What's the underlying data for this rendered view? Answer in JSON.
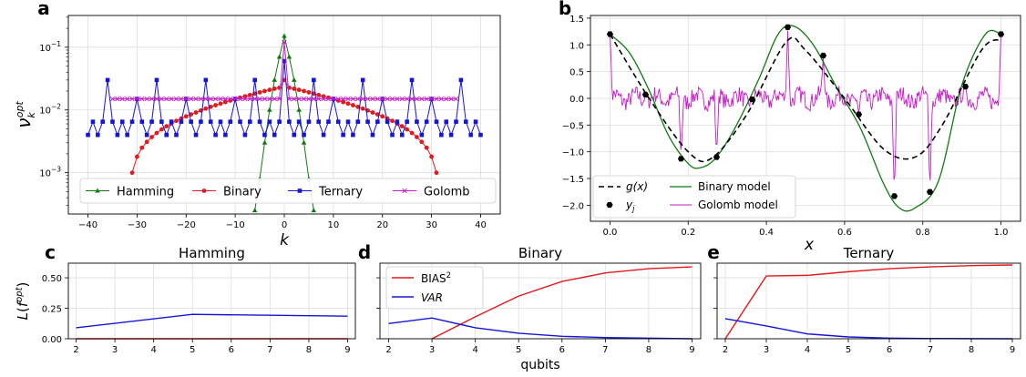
{
  "chart_data": [
    {
      "panel": "a",
      "type": "line",
      "title": "",
      "xlabel": "k",
      "ylabel": "ν_k^opt",
      "yscale": "log",
      "xlim": [
        -44,
        44
      ],
      "ylim": [
        0.00022,
        0.32
      ],
      "xticks": [
        -40,
        -30,
        -20,
        -10,
        0,
        10,
        20,
        30,
        40
      ],
      "yticks": [
        {
          "value": 0.1,
          "base": "10",
          "exp": "−1"
        },
        {
          "value": 0.01,
          "base": "10",
          "exp": "−2"
        },
        {
          "value": 0.001,
          "base": "10",
          "exp": "−3"
        }
      ],
      "grid": true,
      "legend_position": "lower-center",
      "series": [
        {
          "name": "Hamming",
          "color": "#107a10",
          "marker": "triangle",
          "x": [
            -6,
            -5,
            -4,
            -3,
            -2,
            -1,
            0,
            1,
            2,
            3,
            4,
            5,
            6
          ],
          "y": [
            0.00025,
            0.0008,
            0.003,
            0.01,
            0.03,
            0.07,
            0.15,
            0.07,
            0.03,
            0.01,
            0.003,
            0.0008,
            0.00025
          ]
        },
        {
          "name": "Binary",
          "color": "#e31a1c",
          "marker": "circle",
          "x": [
            -31,
            -30,
            -29,
            -28,
            -27,
            -26,
            -25,
            -24,
            -23,
            -22,
            -21,
            -20,
            -19,
            -18,
            -17,
            -16,
            -15,
            -14,
            -13,
            -12,
            -11,
            -10,
            -9,
            -8,
            -7,
            -6,
            -5,
            -4,
            -3,
            -2,
            -1,
            0,
            1,
            2,
            3,
            4,
            5,
            6,
            7,
            8,
            9,
            10,
            11,
            12,
            13,
            14,
            15,
            16,
            17,
            18,
            19,
            20,
            21,
            22,
            23,
            24,
            25,
            26,
            27,
            28,
            29,
            30,
            31
          ],
          "y": [
            0.001,
            0.0018,
            0.0025,
            0.0031,
            0.0037,
            0.0043,
            0.0049,
            0.0055,
            0.0061,
            0.0067,
            0.0073,
            0.0079,
            0.0085,
            0.0091,
            0.0098,
            0.0105,
            0.0112,
            0.0119,
            0.0126,
            0.0133,
            0.0141,
            0.0149,
            0.0157,
            0.0165,
            0.0173,
            0.0182,
            0.0191,
            0.02,
            0.0209,
            0.0218,
            0.0226,
            0.03,
            0.0226,
            0.0218,
            0.0209,
            0.02,
            0.0191,
            0.0182,
            0.0173,
            0.0165,
            0.0157,
            0.0149,
            0.0141,
            0.0133,
            0.0126,
            0.0119,
            0.0112,
            0.0105,
            0.0098,
            0.0091,
            0.0085,
            0.0079,
            0.0073,
            0.0067,
            0.0061,
            0.0055,
            0.0049,
            0.0043,
            0.0037,
            0.0031,
            0.0025,
            0.0018,
            0.001
          ]
        },
        {
          "name": "Ternary",
          "color": "#1515d6",
          "marker": "square",
          "x": [
            -40,
            -39,
            -38,
            -37,
            -36,
            -35,
            -34,
            -33,
            -32,
            -31,
            -30,
            -29,
            -28,
            -27,
            -26,
            -25,
            -24,
            -23,
            -22,
            -21,
            -20,
            -19,
            -18,
            -17,
            -16,
            -15,
            -14,
            -13,
            -12,
            -11,
            -10,
            -9,
            -8,
            -7,
            -6,
            -5,
            -4,
            -3,
            -2,
            -1,
            0,
            1,
            2,
            3,
            4,
            5,
            6,
            7,
            8,
            9,
            10,
            11,
            12,
            13,
            14,
            15,
            16,
            17,
            18,
            19,
            20,
            21,
            22,
            23,
            24,
            25,
            26,
            27,
            28,
            29,
            30,
            31,
            32,
            33,
            34,
            35,
            36,
            37,
            38,
            39,
            40
          ],
          "y": [
            0.004,
            0.0065,
            0.004,
            0.0065,
            0.03,
            0.0065,
            0.004,
            0.0065,
            0.004,
            0.0065,
            0.015,
            0.0065,
            0.004,
            0.0065,
            0.03,
            0.0065,
            0.004,
            0.0065,
            0.004,
            0.0065,
            0.015,
            0.0065,
            0.004,
            0.0065,
            0.03,
            0.0065,
            0.004,
            0.0065,
            0.004,
            0.0065,
            0.015,
            0.0065,
            0.004,
            0.0065,
            0.03,
            0.0065,
            0.004,
            0.0065,
            0.004,
            0.0065,
            0.06,
            0.0065,
            0.004,
            0.0065,
            0.004,
            0.0065,
            0.03,
            0.0065,
            0.004,
            0.0065,
            0.015,
            0.0065,
            0.004,
            0.0065,
            0.004,
            0.0065,
            0.03,
            0.0065,
            0.004,
            0.0065,
            0.015,
            0.0065,
            0.004,
            0.0065,
            0.004,
            0.0065,
            0.03,
            0.0065,
            0.004,
            0.0065,
            0.015,
            0.0065,
            0.004,
            0.0065,
            0.004,
            0.0065,
            0.03,
            0.0065,
            0.004,
            0.0065,
            0.004
          ]
        },
        {
          "name": "Golomb",
          "color": "#c71ac7",
          "marker": "x",
          "x": [
            -35,
            -34,
            -33,
            -32,
            -31,
            -30,
            -29,
            -28,
            -27,
            -26,
            -25,
            -24,
            -23,
            -22,
            -21,
            -20,
            -19,
            -18,
            -17,
            -16,
            -15,
            -14,
            -13,
            -12,
            -11,
            -10,
            -9,
            -8,
            -7,
            -6,
            -5,
            -4,
            -3,
            -2,
            -1,
            0,
            1,
            2,
            3,
            4,
            5,
            6,
            7,
            8,
            9,
            10,
            11,
            12,
            13,
            14,
            15,
            16,
            17,
            18,
            19,
            20,
            21,
            22,
            23,
            24,
            25,
            26,
            27,
            28,
            29,
            30,
            31,
            32,
            33,
            34,
            35
          ],
          "y": [
            0.015,
            0.015,
            0.015,
            0.015,
            0.015,
            0.015,
            0.015,
            0.015,
            0.015,
            0.015,
            0.015,
            0.015,
            0.015,
            0.015,
            0.015,
            0.015,
            0.015,
            0.015,
            0.015,
            0.015,
            0.015,
            0.015,
            0.015,
            0.015,
            0.015,
            0.015,
            0.015,
            0.015,
            0.015,
            0.015,
            0.015,
            0.015,
            0.015,
            0.015,
            0.015,
            0.12,
            0.015,
            0.015,
            0.015,
            0.015,
            0.015,
            0.015,
            0.015,
            0.015,
            0.015,
            0.015,
            0.015,
            0.015,
            0.015,
            0.015,
            0.015,
            0.015,
            0.015,
            0.015,
            0.015,
            0.015,
            0.015,
            0.015,
            0.015,
            0.015,
            0.015,
            0.015,
            0.015,
            0.015,
            0.015,
            0.015,
            0.015,
            0.015,
            0.015,
            0.015,
            0.015
          ]
        }
      ]
    },
    {
      "panel": "b",
      "type": "line",
      "title": "",
      "xlabel": "x",
      "ylabel": "",
      "xlim": [
        -0.05,
        1.05
      ],
      "ylim": [
        -2.3,
        1.55
      ],
      "xticks": [
        0.0,
        0.2,
        0.4,
        0.6,
        0.8,
        1.0
      ],
      "xtick_labels": [
        "0.0",
        "0.2",
        "0.4",
        "0.6",
        "0.8",
        "1.0"
      ],
      "yticks": [
        1.5,
        1.0,
        0.5,
        0.0,
        -0.5,
        -1.0,
        -1.5,
        -2.0
      ],
      "ytick_labels": [
        "1.5",
        "1.0",
        "0.5",
        "0.0",
        "−0.5",
        "−1.0",
        "−1.5",
        "−2.0"
      ],
      "grid": true,
      "legend_position": "lower-left",
      "legend": [
        {
          "label": "g(x)",
          "style": "dashed",
          "color": "#000000"
        },
        {
          "label": "y_j",
          "style": "point",
          "color": "#000000"
        },
        {
          "label": "Binary model",
          "style": "solid",
          "color": "#107a10"
        },
        {
          "label": "Golomb model",
          "style": "solid",
          "color": "#c71ac7"
        }
      ],
      "points_x": [
        0.0,
        0.0909,
        0.1818,
        0.2727,
        0.3636,
        0.4545,
        0.5455,
        0.6364,
        0.7273,
        0.8182,
        0.9091,
        1.0
      ],
      "points_y": [
        1.2,
        0.07,
        -1.13,
        -1.1,
        -0.02,
        1.33,
        0.8,
        -0.3,
        -1.83,
        -1.75,
        0.22,
        1.2
      ],
      "g_x": [
        0.0,
        0.1,
        0.2,
        0.26,
        0.35,
        0.45,
        0.5,
        0.6,
        0.7,
        0.78,
        0.85,
        0.95,
        1.0
      ],
      "g_y": [
        1.2,
        0.0,
        -1.0,
        -1.12,
        -0.3,
        1.05,
        0.9,
        0.0,
        -0.95,
        -1.1,
        -0.5,
        0.9,
        1.1
      ],
      "binary_x": [
        0.0,
        0.05,
        0.1,
        0.15,
        0.2,
        0.23,
        0.27,
        0.32,
        0.38,
        0.43,
        0.47,
        0.52,
        0.58,
        0.64,
        0.7,
        0.74,
        0.78,
        0.84,
        0.9,
        0.96,
        1.0
      ],
      "binary_y": [
        1.2,
        0.85,
        0.15,
        -0.7,
        -1.22,
        -1.3,
        -1.12,
        -0.55,
        0.35,
        1.2,
        1.35,
        1.0,
        0.2,
        -0.55,
        -1.6,
        -2.05,
        -2.05,
        -1.55,
        0.25,
        1.2,
        1.2
      ]
    },
    {
      "panel": "c",
      "type": "line",
      "title": "Hamming",
      "xlabel": "",
      "ylabel": "L(f^opt)",
      "xlim": [
        1.8,
        9.2
      ],
      "ylim": [
        0.0,
        0.62
      ],
      "xticks": [
        2,
        3,
        4,
        5,
        6,
        7,
        8,
        9
      ],
      "yticks": [
        0.0,
        0.25,
        0.5
      ],
      "ytick_labels": [
        "0.00",
        "0.25",
        "0.50"
      ],
      "grid": true,
      "series": [
        {
          "name": "BIAS²",
          "color": "#e31a1c",
          "x": [
            2,
            3,
            4,
            5,
            6,
            7,
            8,
            9
          ],
          "y": [
            0,
            0,
            0,
            0,
            0,
            0,
            0,
            0
          ]
        },
        {
          "name": "VAR",
          "color": "#1515d6",
          "x": [
            2,
            5,
            9
          ],
          "y": [
            0.09,
            0.2,
            0.185
          ]
        }
      ]
    },
    {
      "panel": "d",
      "type": "line",
      "title": "Binary",
      "xlabel": "qubits",
      "ylabel": "",
      "xlim": [
        1.8,
        9.2
      ],
      "ylim": [
        0.0,
        0.62
      ],
      "xticks": [
        2,
        3,
        4,
        5,
        6,
        7,
        8,
        9
      ],
      "grid": true,
      "legend_position": "top-left",
      "legend": [
        {
          "label": "BIAS",
          "sup": "2",
          "color": "#e31a1c",
          "italic": false
        },
        {
          "label": "VAR",
          "sup": "",
          "color": "#1515d6",
          "italic": true
        }
      ],
      "series": [
        {
          "name": "BIAS²",
          "color": "#e31a1c",
          "x": [
            3,
            4,
            5,
            6,
            7,
            8,
            9
          ],
          "y": [
            0.0,
            0.18,
            0.35,
            0.47,
            0.54,
            0.575,
            0.59
          ]
        },
        {
          "name": "VAR",
          "color": "#1515d6",
          "x": [
            2,
            3,
            4,
            5,
            6,
            7,
            8,
            9
          ],
          "y": [
            0.125,
            0.17,
            0.09,
            0.045,
            0.02,
            0.01,
            0.005,
            0.0
          ]
        }
      ]
    },
    {
      "panel": "e",
      "type": "line",
      "title": "Ternary",
      "xlabel": "",
      "ylabel": "",
      "xlim": [
        1.8,
        9.2
      ],
      "ylim": [
        0.0,
        0.62
      ],
      "xticks": [
        2,
        3,
        4,
        5,
        6,
        7,
        8,
        9
      ],
      "grid": true,
      "series": [
        {
          "name": "BIAS²",
          "color": "#e31a1c",
          "x": [
            2,
            3,
            4,
            5,
            6,
            7,
            8,
            9
          ],
          "y": [
            0.0,
            0.515,
            0.52,
            0.55,
            0.575,
            0.59,
            0.6,
            0.605
          ]
        },
        {
          "name": "VAR",
          "color": "#1515d6",
          "x": [
            2,
            3,
            4,
            5,
            6,
            7,
            8,
            9
          ],
          "y": [
            0.165,
            0.105,
            0.04,
            0.015,
            0.005,
            0.002,
            0.001,
            0.0
          ]
        }
      ]
    }
  ]
}
